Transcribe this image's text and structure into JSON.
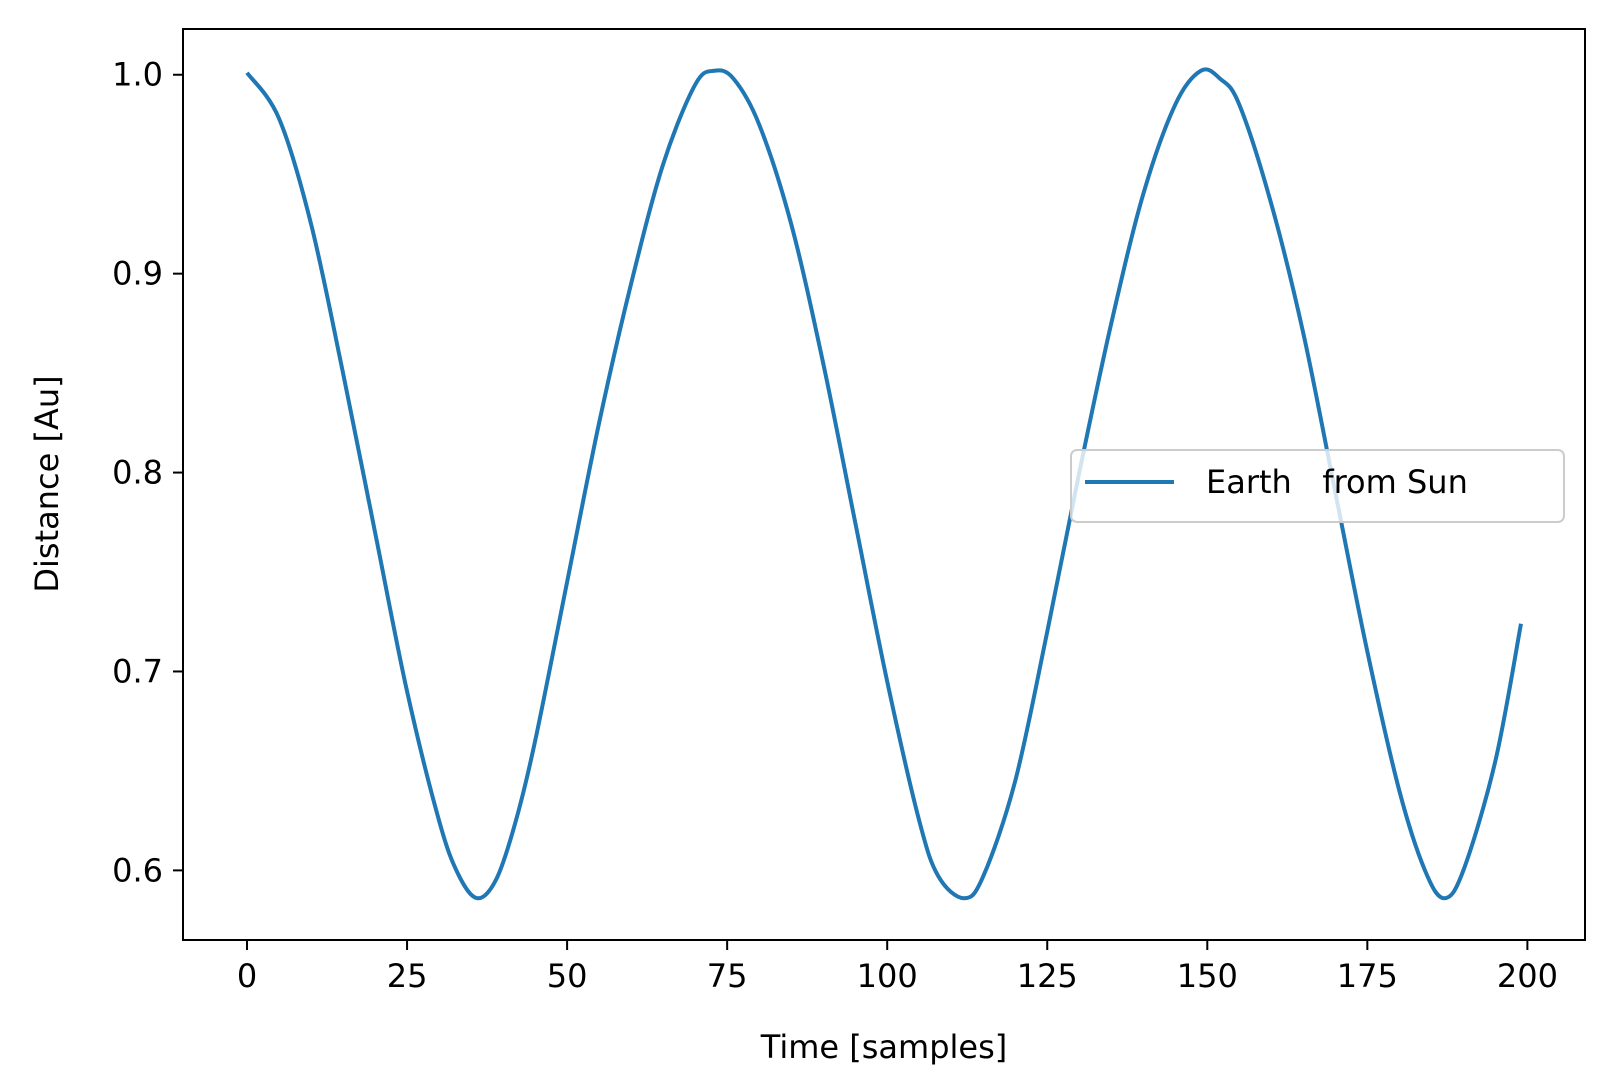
{
  "chart_data": {
    "type": "line",
    "title": "",
    "xlabel": "Time [samples]",
    "ylabel": "Distance [Au]",
    "xlim": [
      -10,
      209
    ],
    "ylim": [
      0.565,
      1.023
    ],
    "xticks": [
      0,
      25,
      50,
      75,
      100,
      125,
      150,
      175,
      200
    ],
    "xtick_labels": [
      "0",
      "25",
      "50",
      "75",
      "100",
      "125",
      "150",
      "175",
      "200"
    ],
    "yticks": [
      0.6,
      0.7,
      0.8,
      0.9,
      1.0
    ],
    "ytick_labels": [
      "0.6",
      "0.7",
      "0.8",
      "0.9",
      "1.0"
    ],
    "grid": false,
    "legend": {
      "position": "center-right"
    },
    "series": [
      {
        "name": "Earth   from Sun",
        "color": "#1f77b4",
        "x": [
          0,
          5,
          10,
          15,
          20,
          25,
          30,
          33,
          36,
          39,
          42,
          45,
          50,
          55,
          60,
          65,
          70,
          73,
          76,
          80,
          85,
          90,
          95,
          100,
          105,
          108,
          112,
          115,
          120,
          125,
          130,
          135,
          140,
          145,
          149,
          152,
          155,
          160,
          165,
          170,
          175,
          180,
          184,
          187,
          190,
          195,
          199
        ],
        "y": [
          1.001,
          0.978,
          0.925,
          0.85,
          0.77,
          0.69,
          0.625,
          0.598,
          0.586,
          0.596,
          0.625,
          0.665,
          0.745,
          0.825,
          0.895,
          0.955,
          0.995,
          1.002,
          0.998,
          0.975,
          0.925,
          0.855,
          0.775,
          0.695,
          0.625,
          0.597,
          0.586,
          0.597,
          0.645,
          0.72,
          0.8,
          0.875,
          0.94,
          0.985,
          1.002,
          0.998,
          0.985,
          0.935,
          0.87,
          0.79,
          0.71,
          0.64,
          0.6,
          0.586,
          0.6,
          0.655,
          0.724
        ]
      }
    ]
  }
}
